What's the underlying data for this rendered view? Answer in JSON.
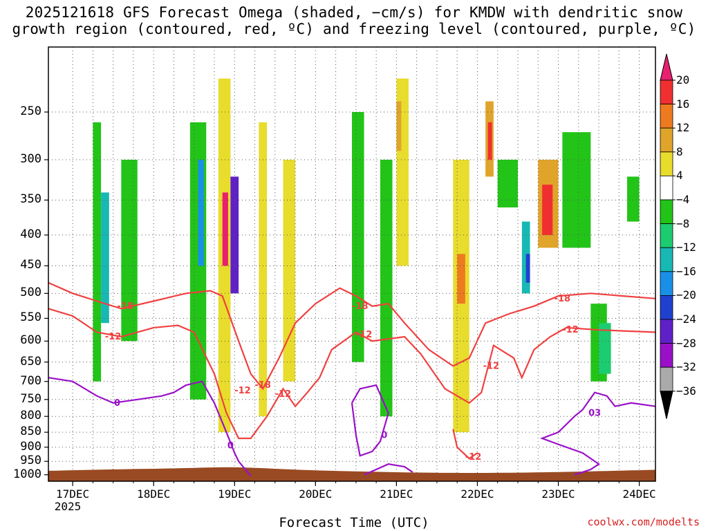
{
  "title": {
    "line1": "2025121618 GFS Forecast Omega (shaded, −cm/s) for KMDW with dendritic snow",
    "line2": "growth region (contoured, red, ºC) and freezing level (contoured, purple, ºC)"
  },
  "credit": "coolwx.com/modelts",
  "colors": {
    "ground": "#9a4a22",
    "grid": "#555555",
    "dgz_contour": "#f04040",
    "freezing_contour": "#9a10c8"
  },
  "chart_data": {
    "type": "heatmap",
    "title": "2025121618 GFS Forecast Omega (shaded, −cm/s) for KMDW with dendritic snow growth region (contoured, red, ºC) and freezing level (contoured, purple, ºC)",
    "xlabel": "Forecast Time (UTC)",
    "ylabel": "",
    "xlim_days": [
      -0.3,
      7.2
    ],
    "ylim_hpa": [
      1025,
      195
    ],
    "y_scale": "log-pressure",
    "y_ticks": [
      250,
      300,
      350,
      400,
      450,
      500,
      550,
      600,
      650,
      700,
      750,
      800,
      850,
      900,
      950,
      1000
    ],
    "x_ticks": [
      {
        "day": 0,
        "label": "17DEC"
      },
      {
        "day": 1,
        "label": "18DEC"
      },
      {
        "day": 2,
        "label": "19DEC"
      },
      {
        "day": 3,
        "label": "20DEC"
      },
      {
        "day": 4,
        "label": "21DEC"
      },
      {
        "day": 5,
        "label": "22DEC"
      },
      {
        "day": 6,
        "label": "23DEC"
      },
      {
        "day": 7,
        "label": "24DEC"
      }
    ],
    "x_year_label": "2025",
    "colorbar": {
      "labels": [
        "20",
        "16",
        "12",
        "8",
        "4",
        "−4",
        "−8",
        "−12",
        "−16",
        "−20",
        "−24",
        "−28",
        "−32",
        "−36"
      ],
      "bins": [
        {
          "min": 20,
          "max": null,
          "color": "#e8206e"
        },
        {
          "min": 16,
          "max": 20,
          "color": "#f03030"
        },
        {
          "min": 12,
          "max": 16,
          "color": "#ee7a20"
        },
        {
          "min": 8,
          "max": 12,
          "color": "#e0a42a"
        },
        {
          "min": 4,
          "max": 8,
          "color": "#e8dc2c"
        },
        {
          "min": -4,
          "max": 4,
          "color": "#ffffff"
        },
        {
          "min": -8,
          "max": -4,
          "color": "#22c418"
        },
        {
          "min": -12,
          "max": -8,
          "color": "#1ccc70"
        },
        {
          "min": -16,
          "max": -12,
          "color": "#18b8b4"
        },
        {
          "min": -20,
          "max": -16,
          "color": "#1890e8"
        },
        {
          "min": -24,
          "max": -20,
          "color": "#2040d0"
        },
        {
          "min": -28,
          "max": -24,
          "color": "#6020c8"
        },
        {
          "min": -32,
          "max": -28,
          "color": "#9a10c8"
        },
        {
          "min": -36,
          "max": -32,
          "color": "#aaaaaa"
        },
        {
          "min": null,
          "max": -36,
          "color": "#000000"
        }
      ]
    },
    "shading_cells": [
      {
        "day0": 0.25,
        "day1": 0.35,
        "p_top": 260,
        "p_bot": 700,
        "color": "#22c418"
      },
      {
        "day0": 0.35,
        "day1": 0.45,
        "p_top": 340,
        "p_bot": 560,
        "color": "#18b8b4"
      },
      {
        "day0": 0.6,
        "day1": 0.8,
        "p_top": 300,
        "p_bot": 600,
        "color": "#22c418"
      },
      {
        "day0": 1.45,
        "day1": 1.65,
        "p_top": 260,
        "p_bot": 750,
        "color": "#22c418"
      },
      {
        "day0": 1.55,
        "day1": 1.62,
        "p_top": 300,
        "p_bot": 450,
        "color": "#1890e8"
      },
      {
        "day0": 1.8,
        "day1": 1.95,
        "p_top": 220,
        "p_bot": 850,
        "color": "#e8dc2c"
      },
      {
        "day0": 1.85,
        "day1": 1.92,
        "p_top": 340,
        "p_bot": 450,
        "color": "#e8206e"
      },
      {
        "day0": 1.95,
        "day1": 2.05,
        "p_top": 320,
        "p_bot": 500,
        "color": "#6020c8"
      },
      {
        "day0": 2.3,
        "day1": 2.4,
        "p_top": 260,
        "p_bot": 800,
        "color": "#e8dc2c"
      },
      {
        "day0": 2.6,
        "day1": 2.75,
        "p_top": 300,
        "p_bot": 700,
        "color": "#e8dc2c"
      },
      {
        "day0": 3.45,
        "day1": 3.6,
        "p_top": 250,
        "p_bot": 650,
        "color": "#22c418"
      },
      {
        "day0": 3.8,
        "day1": 3.95,
        "p_top": 300,
        "p_bot": 800,
        "color": "#22c418"
      },
      {
        "day0": 4.0,
        "day1": 4.15,
        "p_top": 220,
        "p_bot": 450,
        "color": "#e8dc2c"
      },
      {
        "day0": 4.0,
        "day1": 4.06,
        "p_top": 240,
        "p_bot": 290,
        "color": "#e0a42a"
      },
      {
        "day0": 4.7,
        "day1": 4.9,
        "p_top": 300,
        "p_bot": 850,
        "color": "#e8dc2c"
      },
      {
        "day0": 4.75,
        "day1": 4.85,
        "p_top": 430,
        "p_bot": 520,
        "color": "#ee7a20"
      },
      {
        "day0": 5.1,
        "day1": 5.2,
        "p_top": 240,
        "p_bot": 320,
        "color": "#e0a42a"
      },
      {
        "day0": 5.13,
        "day1": 5.18,
        "p_top": 260,
        "p_bot": 300,
        "color": "#f03030"
      },
      {
        "day0": 5.25,
        "day1": 5.5,
        "p_top": 300,
        "p_bot": 360,
        "color": "#22c418"
      },
      {
        "day0": 5.55,
        "day1": 5.65,
        "p_top": 380,
        "p_bot": 500,
        "color": "#18b8b4"
      },
      {
        "day0": 5.6,
        "day1": 5.65,
        "p_top": 430,
        "p_bot": 480,
        "color": "#2040d0"
      },
      {
        "day0": 5.75,
        "day1": 6.0,
        "p_top": 300,
        "p_bot": 420,
        "color": "#e0a42a"
      },
      {
        "day0": 5.8,
        "day1": 5.93,
        "p_top": 330,
        "p_bot": 400,
        "color": "#f03030"
      },
      {
        "day0": 6.05,
        "day1": 6.4,
        "p_top": 270,
        "p_bot": 420,
        "color": "#22c418"
      },
      {
        "day0": 6.4,
        "day1": 6.6,
        "p_top": 520,
        "p_bot": 700,
        "color": "#22c418"
      },
      {
        "day0": 6.5,
        "day1": 6.65,
        "p_top": 560,
        "p_bot": 680,
        "color": "#1ccc70"
      },
      {
        "day0": 6.85,
        "day1": 7.0,
        "p_top": 320,
        "p_bot": 380,
        "color": "#22c418"
      }
    ],
    "contours": [
      {
        "label": "-18",
        "kind": "dgz",
        "points": [
          [
            -0.3,
            480
          ],
          [
            0,
            500
          ],
          [
            0.4,
            520
          ],
          [
            0.6,
            530
          ],
          [
            1.0,
            515
          ],
          [
            1.4,
            500
          ],
          [
            1.7,
            495
          ],
          [
            1.85,
            505
          ],
          [
            2.05,
            600
          ],
          [
            2.2,
            680
          ],
          [
            2.35,
            720
          ],
          [
            2.55,
            640
          ],
          [
            2.75,
            560
          ],
          [
            3.0,
            520
          ],
          [
            3.3,
            490
          ],
          [
            3.5,
            505
          ],
          [
            3.7,
            525
          ],
          [
            3.9,
            520
          ],
          [
            4.1,
            560
          ],
          [
            4.4,
            620
          ],
          [
            4.7,
            660
          ],
          [
            4.9,
            640
          ],
          [
            5.1,
            560
          ],
          [
            5.4,
            540
          ],
          [
            5.7,
            525
          ],
          [
            6.0,
            505
          ],
          [
            6.4,
            500
          ],
          [
            6.8,
            505
          ],
          [
            7.2,
            510
          ]
        ]
      },
      {
        "label": "-12",
        "kind": "dgz",
        "points": [
          [
            -0.3,
            530
          ],
          [
            0,
            545
          ],
          [
            0.3,
            580
          ],
          [
            0.6,
            590
          ],
          [
            1.0,
            570
          ],
          [
            1.3,
            565
          ],
          [
            1.5,
            580
          ],
          [
            1.75,
            680
          ],
          [
            1.9,
            790
          ],
          [
            2.05,
            870
          ],
          [
            2.2,
            870
          ],
          [
            2.4,
            800
          ],
          [
            2.6,
            720
          ],
          [
            2.75,
            770
          ],
          [
            2.9,
            730
          ],
          [
            3.05,
            690
          ],
          [
            3.2,
            620
          ],
          [
            3.5,
            580
          ],
          [
            3.7,
            600
          ],
          [
            4.1,
            590
          ],
          [
            4.3,
            630
          ],
          [
            4.6,
            720
          ],
          [
            4.9,
            760
          ],
          [
            5.05,
            730
          ],
          [
            5.2,
            610
          ],
          [
            5.45,
            640
          ],
          [
            5.55,
            690
          ],
          [
            5.7,
            620
          ],
          [
            5.9,
            590
          ],
          [
            6.1,
            570
          ],
          [
            6.5,
            575
          ],
          [
            7.2,
            580
          ]
        ]
      },
      {
        "label": "-12",
        "kind": "dgz",
        "points": [
          [
            4.7,
            840
          ],
          [
            4.75,
            900
          ],
          [
            4.9,
            940
          ],
          [
            5.0,
            920
          ]
        ]
      },
      {
        "label": "0",
        "kind": "freezing",
        "points": [
          [
            -0.3,
            690
          ],
          [
            0,
            700
          ],
          [
            0.3,
            740
          ],
          [
            0.5,
            760
          ],
          [
            0.8,
            750
          ],
          [
            1.1,
            740
          ],
          [
            1.25,
            730
          ],
          [
            1.4,
            710
          ],
          [
            1.6,
            700
          ],
          [
            1.75,
            760
          ],
          [
            1.9,
            850
          ],
          [
            2.0,
            920
          ],
          [
            2.05,
            950
          ],
          [
            2.2,
            1005
          ]
        ]
      },
      {
        "label": "0",
        "kind": "freezing",
        "points": [
          [
            3.45,
            760
          ],
          [
            3.5,
            860
          ],
          [
            3.55,
            930
          ],
          [
            3.7,
            915
          ],
          [
            3.8,
            880
          ],
          [
            3.9,
            790
          ],
          [
            3.75,
            710
          ],
          [
            3.55,
            720
          ],
          [
            3.45,
            760
          ]
        ]
      },
      {
        "label": "0",
        "kind": "freezing",
        "points": [
          [
            3.6,
            1000
          ],
          [
            3.9,
            960
          ],
          [
            4.1,
            970
          ],
          [
            4.2,
            990
          ]
        ]
      },
      {
        "label": "0",
        "kind": "freezing",
        "points": [
          [
            6.2,
            1000
          ],
          [
            6.4,
            980
          ],
          [
            6.5,
            960
          ],
          [
            6.3,
            920
          ],
          [
            6.0,
            890
          ],
          [
            5.8,
            870
          ],
          [
            6.0,
            850
          ],
          [
            6.2,
            800
          ],
          [
            6.3,
            780
          ],
          [
            6.45,
            730
          ],
          [
            6.6,
            740
          ],
          [
            6.7,
            770
          ],
          [
            6.9,
            760
          ],
          [
            7.2,
            770
          ]
        ]
      }
    ],
    "contour_labels": [
      {
        "text": "-18",
        "day": 0.65,
        "p": 525
      },
      {
        "text": "-18",
        "day": 3.55,
        "p": 525
      },
      {
        "text": "-18",
        "day": 6.05,
        "p": 510
      },
      {
        "text": "-18",
        "day": 2.35,
        "p": 710
      },
      {
        "text": "-12",
        "day": 0.5,
        "p": 590
      },
      {
        "text": "-12",
        "day": 3.6,
        "p": 585
      },
      {
        "text": "-12",
        "day": 6.15,
        "p": 575
      },
      {
        "text": "-12",
        "day": 5.17,
        "p": 660
      },
      {
        "text": "-12",
        "day": 2.1,
        "p": 725
      },
      {
        "text": "-12",
        "day": 2.6,
        "p": 735
      },
      {
        "text": "-12",
        "day": 4.95,
        "p": 935
      },
      {
        "text": "0",
        "day": 0.55,
        "p": 760
      },
      {
        "text": "0",
        "day": 1.95,
        "p": 895
      },
      {
        "text": "0",
        "day": 3.85,
        "p": 860
      },
      {
        "text": "03",
        "day": 6.45,
        "p": 790
      }
    ]
  }
}
